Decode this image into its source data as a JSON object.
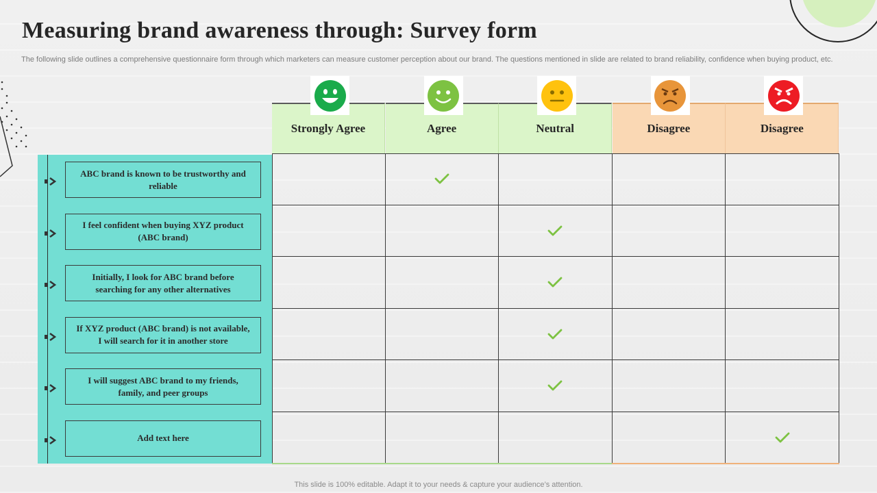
{
  "slide": {
    "title": "Measuring brand awareness through: Survey form",
    "subtitle": "The following slide outlines a comprehensive questionnaire form through which marketers can measure customer perception about our brand. The questions mentioned in slide are related to brand reliability, confidence when buying product, etc.",
    "footer": "This slide is 100% editable. Adapt it to your needs & capture your audience’s attention."
  },
  "columns": [
    {
      "label": "Strongly Agree",
      "face": "very-happy-face-icon",
      "color": "#1aab4b",
      "tone": "green"
    },
    {
      "label": "Agree",
      "face": "happy-face-icon",
      "color": "#7dc242",
      "tone": "green"
    },
    {
      "label": "Neutral",
      "face": "neutral-face-icon",
      "color": "#ffc20e",
      "tone": "green"
    },
    {
      "label": "Disagree",
      "face": "sad-face-icon",
      "color": "#e8953a",
      "tone": "orange"
    },
    {
      "label": "Disagree",
      "face": "angry-face-icon",
      "color": "#ed1c24",
      "tone": "orange"
    }
  ],
  "questions": [
    {
      "text": "ABC brand is known to be trustworthy and reliable",
      "selected": 1
    },
    {
      "text": "I feel confident when buying XYZ product (ABC brand)",
      "selected": 2
    },
    {
      "text": "Initially, I look for ABC brand before searching for any other alternatives",
      "selected": 2
    },
    {
      "text": "If XYZ product (ABC brand) is not available, I will search for it in another store",
      "selected": 2
    },
    {
      "text": "I will suggest ABC brand to my friends, family, and peer groups",
      "selected": 2
    },
    {
      "text": "Add text here",
      "selected": 4
    }
  ],
  "colors": {
    "panel": "#73ded3",
    "check": "#7dc242",
    "header_green": "#dbf5c9",
    "header_orange": "#fad8b4"
  }
}
